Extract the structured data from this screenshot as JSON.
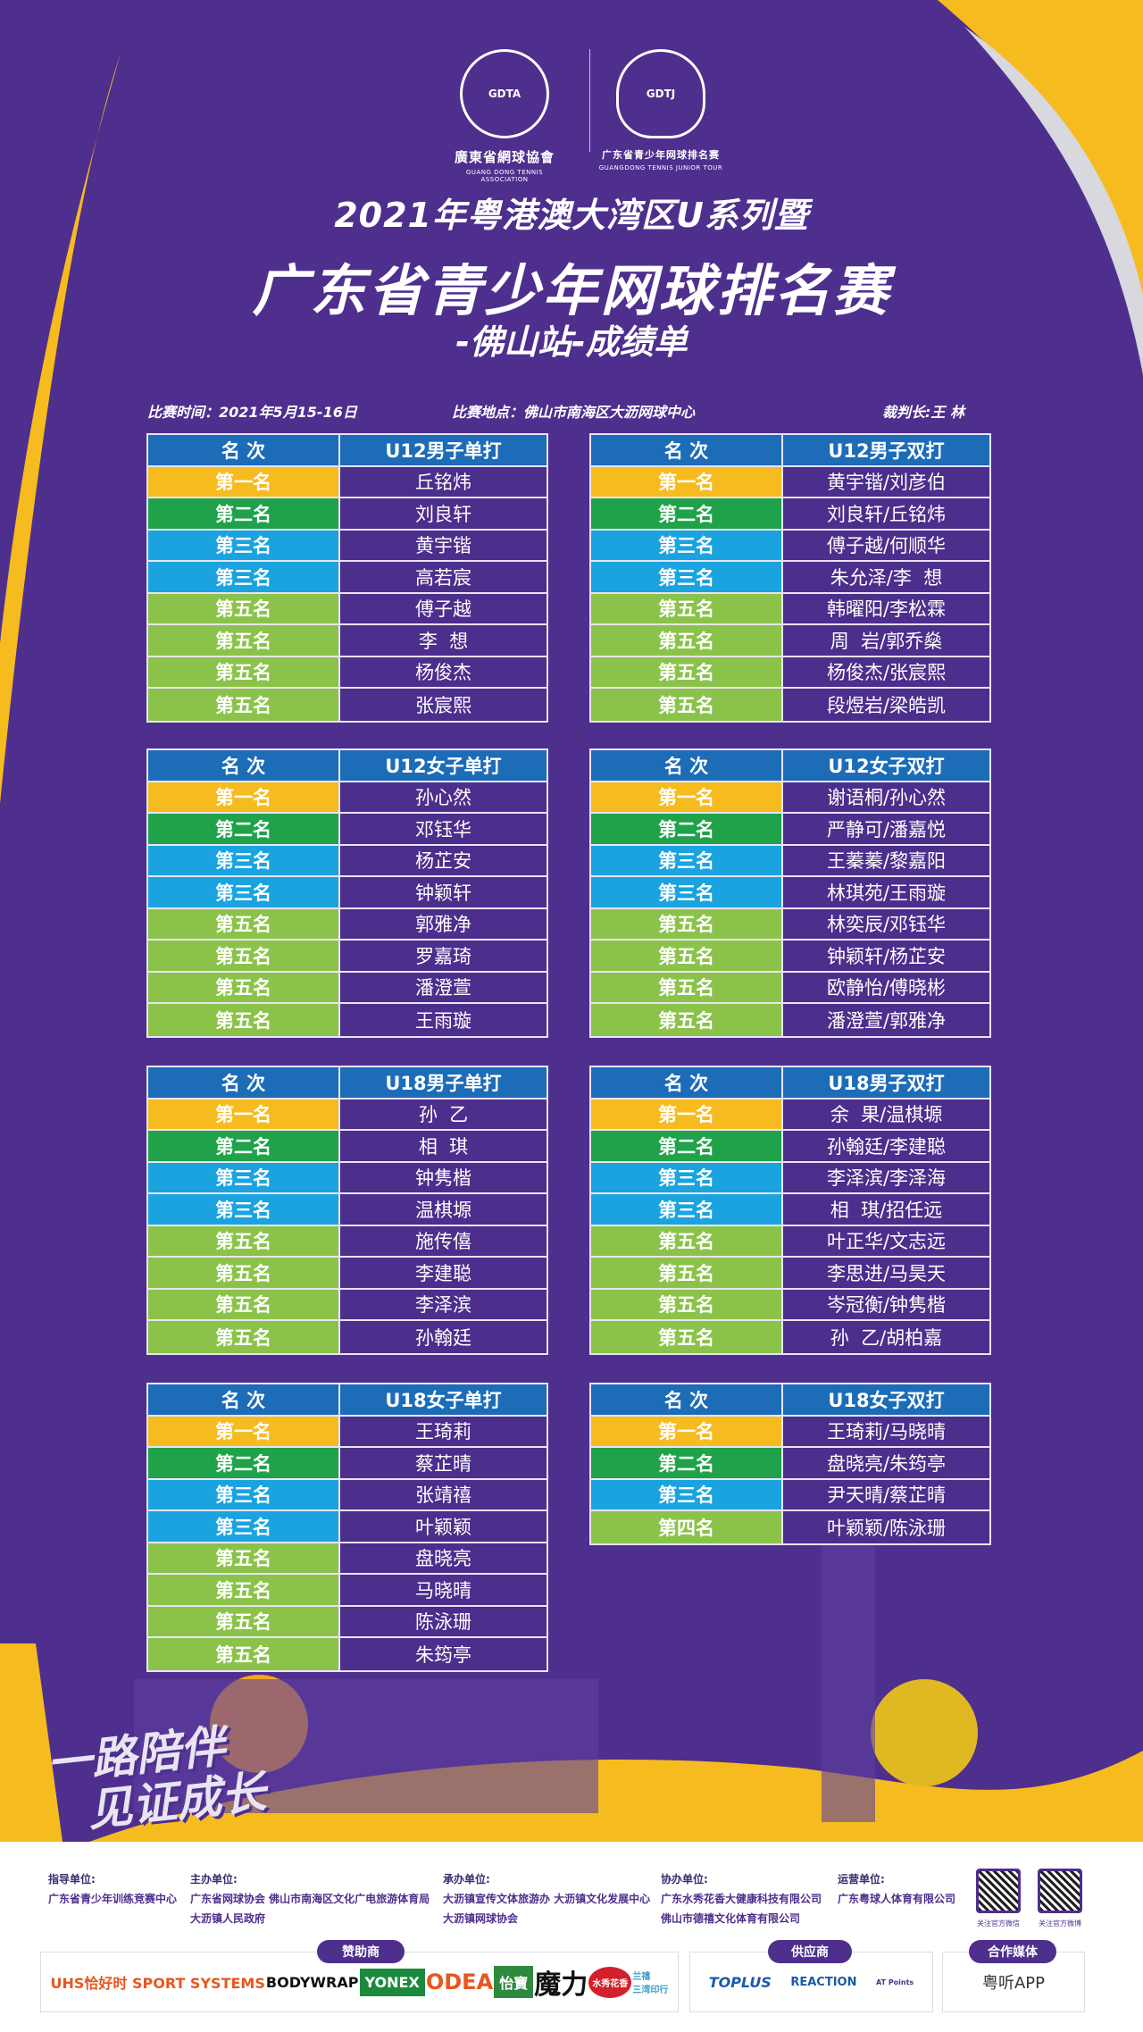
{
  "colors": {
    "background": "#4e2f8e",
    "header": "#1c6cb8",
    "first": "#f6bb1f",
    "second": "#1fa24a",
    "third": "#1aa3df",
    "fifth": "#8bc34a",
    "name_cell": "#4c2e8c",
    "accent_yellow": "#f6bb1f"
  },
  "logos": {
    "left": {
      "emblem": "GDTA",
      "name_cn": "廣東省網球協會",
      "name_en": "GUANG DONG TENNIS ASSOCIATION"
    },
    "right": {
      "emblem": "GDTJ",
      "name_cn": "广东省青少年网球排名赛",
      "name_en": "GUANGDONG TENNIS JUNIOR TOUR"
    }
  },
  "header": {
    "line1": "2021年粤港澳大湾区U系列暨",
    "line2": "广东省青少年网球排名赛",
    "line3": "-佛山站-成绩单"
  },
  "info": {
    "date": "比赛时间：2021年5月15-16日",
    "venue": "比赛地点：佛山市南海区大沥网球中心",
    "referee": "裁判长:王  林"
  },
  "tables": [
    {
      "rank_header": "名  次",
      "event": "U12男子单打",
      "rows": [
        {
          "rank": "第一名",
          "name": "丘铭炜",
          "tier": "first"
        },
        {
          "rank": "第二名",
          "name": "刘良轩",
          "tier": "second"
        },
        {
          "rank": "第三名",
          "name": "黄宇锴",
          "tier": "third"
        },
        {
          "rank": "第三名",
          "name": "高若宸",
          "tier": "third"
        },
        {
          "rank": "第五名",
          "name": "傅子越",
          "tier": "fifth"
        },
        {
          "rank": "第五名",
          "name": "李  想",
          "tier": "fifth"
        },
        {
          "rank": "第五名",
          "name": "杨俊杰",
          "tier": "fifth"
        },
        {
          "rank": "第五名",
          "name": "张宸熙",
          "tier": "fifth"
        }
      ]
    },
    {
      "rank_header": "名  次",
      "event": "U12男子双打",
      "rows": [
        {
          "rank": "第一名",
          "name": "黄宇锴/刘彦伯",
          "tier": "first"
        },
        {
          "rank": "第二名",
          "name": "刘良轩/丘铭炜",
          "tier": "second"
        },
        {
          "rank": "第三名",
          "name": "傅子越/何顺华",
          "tier": "third"
        },
        {
          "rank": "第三名",
          "name": "朱允泽/李  想",
          "tier": "third"
        },
        {
          "rank": "第五名",
          "name": "韩曜阳/李松霖",
          "tier": "fifth"
        },
        {
          "rank": "第五名",
          "name": "周  岩/郭乔燊",
          "tier": "fifth"
        },
        {
          "rank": "第五名",
          "name": "杨俊杰/张宸熙",
          "tier": "fifth"
        },
        {
          "rank": "第五名",
          "name": "段煜岩/梁皓凯",
          "tier": "fifth"
        }
      ]
    },
    {
      "rank_header": "名  次",
      "event": "U12女子单打",
      "rows": [
        {
          "rank": "第一名",
          "name": "孙心然",
          "tier": "first"
        },
        {
          "rank": "第二名",
          "name": "邓钰华",
          "tier": "second"
        },
        {
          "rank": "第三名",
          "name": "杨芷安",
          "tier": "third"
        },
        {
          "rank": "第三名",
          "name": "钟颖轩",
          "tier": "third"
        },
        {
          "rank": "第五名",
          "name": "郭雅净",
          "tier": "fifth"
        },
        {
          "rank": "第五名",
          "name": "罗嘉琦",
          "tier": "fifth"
        },
        {
          "rank": "第五名",
          "name": "潘澄萱",
          "tier": "fifth"
        },
        {
          "rank": "第五名",
          "name": "王雨璇",
          "tier": "fifth"
        }
      ]
    },
    {
      "rank_header": "名  次",
      "event": "U12女子双打",
      "rows": [
        {
          "rank": "第一名",
          "name": "谢语桐/孙心然",
          "tier": "first"
        },
        {
          "rank": "第二名",
          "name": "严静可/潘嘉悦",
          "tier": "second"
        },
        {
          "rank": "第三名",
          "name": "王蓁蓁/黎嘉阳",
          "tier": "third"
        },
        {
          "rank": "第三名",
          "name": "林琪苑/王雨璇",
          "tier": "third"
        },
        {
          "rank": "第五名",
          "name": "林奕辰/邓钰华",
          "tier": "fifth"
        },
        {
          "rank": "第五名",
          "name": "钟颖轩/杨芷安",
          "tier": "fifth"
        },
        {
          "rank": "第五名",
          "name": "欧静怡/傅晓彬",
          "tier": "fifth"
        },
        {
          "rank": "第五名",
          "name": "潘澄萱/郭雅净",
          "tier": "fifth"
        }
      ]
    },
    {
      "rank_header": "名  次",
      "event": "U18男子单打",
      "rows": [
        {
          "rank": "第一名",
          "name": "孙  乙",
          "tier": "first"
        },
        {
          "rank": "第二名",
          "name": "相  琪",
          "tier": "second"
        },
        {
          "rank": "第三名",
          "name": "钟隽楷",
          "tier": "third"
        },
        {
          "rank": "第三名",
          "name": "温棋塬",
          "tier": "third"
        },
        {
          "rank": "第五名",
          "name": "施传僖",
          "tier": "fifth"
        },
        {
          "rank": "第五名",
          "name": "李建聪",
          "tier": "fifth"
        },
        {
          "rank": "第五名",
          "name": "李泽滨",
          "tier": "fifth"
        },
        {
          "rank": "第五名",
          "name": "孙翰廷",
          "tier": "fifth"
        }
      ]
    },
    {
      "rank_header": "名  次",
      "event": "U18男子双打",
      "rows": [
        {
          "rank": "第一名",
          "name": "余  果/温棋塬",
          "tier": "first"
        },
        {
          "rank": "第二名",
          "name": "孙翰廷/李建聪",
          "tier": "second"
        },
        {
          "rank": "第三名",
          "name": "李泽滨/李泽海",
          "tier": "third"
        },
        {
          "rank": "第三名",
          "name": "相  琪/招任远",
          "tier": "third"
        },
        {
          "rank": "第五名",
          "name": "叶正华/文志远",
          "tier": "fifth"
        },
        {
          "rank": "第五名",
          "name": "李思进/马昊天",
          "tier": "fifth"
        },
        {
          "rank": "第五名",
          "name": "岑冠衡/钟隽楷",
          "tier": "fifth"
        },
        {
          "rank": "第五名",
          "name": "孙  乙/胡柏嘉",
          "tier": "fifth"
        }
      ]
    },
    {
      "rank_header": "名  次",
      "event": "U18女子单打",
      "rows": [
        {
          "rank": "第一名",
          "name": "王琦莉",
          "tier": "first"
        },
        {
          "rank": "第二名",
          "name": "蔡芷晴",
          "tier": "second"
        },
        {
          "rank": "第三名",
          "name": "张靖禧",
          "tier": "third"
        },
        {
          "rank": "第三名",
          "name": "叶颖颖",
          "tier": "third"
        },
        {
          "rank": "第五名",
          "name": "盘晓亮",
          "tier": "fifth"
        },
        {
          "rank": "第五名",
          "name": "马晓晴",
          "tier": "fifth"
        },
        {
          "rank": "第五名",
          "name": "陈泳珊",
          "tier": "fifth"
        },
        {
          "rank": "第五名",
          "name": "朱筠亭",
          "tier": "fifth"
        }
      ]
    },
    {
      "rank_header": "名  次",
      "event": "U18女子双打",
      "rows": [
        {
          "rank": "第一名",
          "name": "王琦莉/马晓晴",
          "tier": "first"
        },
        {
          "rank": "第二名",
          "name": "盘晓亮/朱筠亭",
          "tier": "second"
        },
        {
          "rank": "第三名",
          "name": "尹天晴/蔡芷晴",
          "tier": "third"
        },
        {
          "rank": "第四名",
          "name": "叶颖颖/陈泳珊",
          "tier": "fifth"
        }
      ]
    }
  ],
  "slogan": {
    "line1": "一路陪伴",
    "line2": "见证成长"
  },
  "footer": {
    "units": [
      {
        "label": "指导单位:",
        "lines": [
          "广东省青少年训练竞赛中心"
        ]
      },
      {
        "label": "主办单位:",
        "lines": [
          "广东省网球协会  佛山市南海区文化广电旅游体育局",
          "大沥镇人民政府"
        ]
      },
      {
        "label": "承办单位:",
        "lines": [
          "大沥镇宣传文体旅游办  大沥镇文化发展中心",
          "大沥镇网球协会"
        ]
      },
      {
        "label": "协办单位:",
        "lines": [
          "广东水秀花香大健康科技有限公司",
          "佛山市德禧文化体育有限公司"
        ]
      },
      {
        "label": "运营单位:",
        "lines": [
          "广东粤球人体育有限公司"
        ]
      }
    ],
    "qr": [
      {
        "label": "关注官方微信"
      },
      {
        "label": "关注官方微博"
      }
    ],
    "sponsors_title": "赞助商",
    "sponsors": [
      "UHS恰好时 SPORT SYSTEMS",
      "BODYWRAP",
      "YONEX",
      "ODEA",
      "怡寶",
      "魔力",
      "水秀花香",
      "兰禧",
      "三湾印行"
    ],
    "suppliers_title": "供应商",
    "suppliers": [
      "TOPLUS",
      "REACTION",
      "AT Points"
    ],
    "media_title": "合作媒体",
    "media": [
      "粤听APP"
    ]
  }
}
